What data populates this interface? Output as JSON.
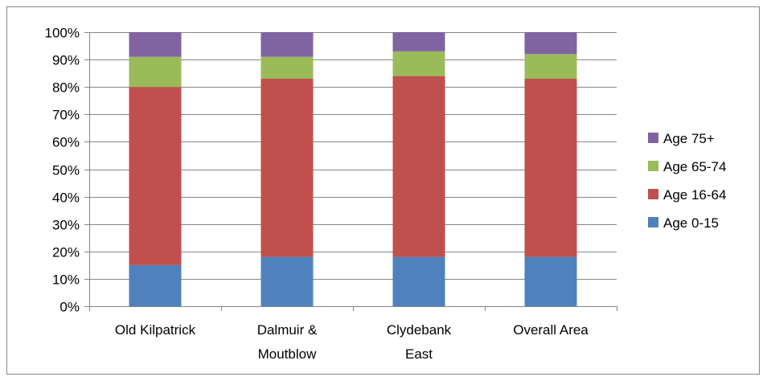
{
  "chart_data": {
    "type": "bar",
    "stacked": true,
    "percent_stacked": true,
    "categories": [
      [
        "Old Kilpatrick"
      ],
      [
        "Dalmuir &",
        "Moutblow"
      ],
      [
        "Clydebank",
        "East"
      ],
      [
        "Overall Area"
      ]
    ],
    "series": [
      {
        "name": "Age 0-15",
        "color": "#4F81BD",
        "values": [
          15,
          18,
          18,
          18
        ]
      },
      {
        "name": "Age 16-64",
        "color": "#C0504D",
        "values": [
          65,
          65,
          66,
          65
        ]
      },
      {
        "name": "Age 65-74",
        "color": "#9BBB59",
        "values": [
          11,
          8,
          9,
          9
        ]
      },
      {
        "name": "Age 75+",
        "color": "#8064A2",
        "values": [
          9,
          9,
          7,
          8
        ]
      }
    ],
    "ylim": [
      0,
      100
    ],
    "yticks": [
      "0%",
      "10%",
      "20%",
      "30%",
      "40%",
      "50%",
      "60%",
      "70%",
      "80%",
      "90%",
      "100%"
    ],
    "grid": true,
    "legend": "right",
    "title": "",
    "xlabel": "",
    "ylabel": ""
  }
}
